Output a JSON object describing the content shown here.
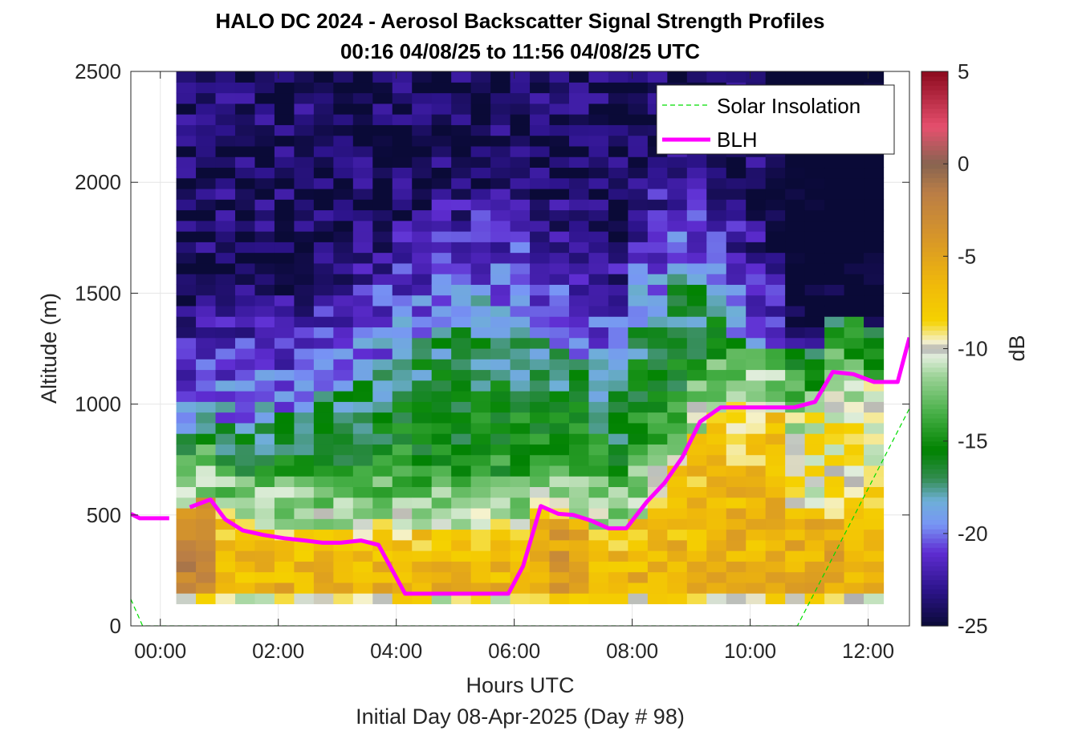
{
  "chart_data": {
    "type": "heatmap",
    "title": "HALO DC 2024 - Aerosol Backscatter Signal Strength Profiles",
    "subtitle": "00:16 04/08/25 to 11:56 04/08/25  UTC",
    "xlabel": "Hours UTC",
    "xlabel2": "Initial Day 08-Apr-2025 (Day # 98)",
    "ylabel": "Altitude (m)",
    "colorbar_label": "dB",
    "xlim": [
      -0.5,
      12.7
    ],
    "ylim": [
      0,
      2500
    ],
    "x_ticks": [
      0,
      2,
      4,
      6,
      8,
      10,
      12
    ],
    "x_tick_labels": [
      "00:00",
      "02:00",
      "04:00",
      "06:00",
      "08:00",
      "10:00",
      "12:00"
    ],
    "y_ticks": [
      0,
      500,
      1000,
      1500,
      2000,
      2500
    ],
    "y_tick_labels": [
      "0",
      "500",
      "1000",
      "1500",
      "2000",
      "2500"
    ],
    "clim": [
      -25,
      5
    ],
    "colorbar_ticks": [
      5,
      0,
      -5,
      -10,
      -15,
      -20,
      -25
    ],
    "colorbar_tick_labels": [
      "5",
      "0",
      "-5",
      "-10",
      "-15",
      "-20",
      "-25"
    ],
    "grid": true,
    "legend_position": "top-right",
    "heatmap": {
      "x_start": 0.27,
      "x_end": 11.93,
      "y_start": 100,
      "y_end": 2500,
      "row_step_m": 48,
      "column_step_hours": 0.333,
      "note_range_db": [
        -25,
        5
      ]
    },
    "series": [
      {
        "name": "Solar Insolation",
        "color": "#00dd00",
        "style": "dashed",
        "x": [
          -0.5,
          -0.3,
          10.8,
          12.7
        ],
        "y": [
          120,
          0,
          0,
          980
        ]
      },
      {
        "name": "BLH",
        "color": "#ff00ff",
        "style": "solid",
        "segments": [
          {
            "x": [
              -0.5,
              -0.35,
              0.15
            ],
            "y": [
              505,
              485,
              485
            ]
          },
          {
            "x": [
              0.5,
              0.85,
              1.1,
              1.4,
              1.75,
              2.1,
              2.45,
              2.75,
              3.05,
              3.4,
              3.7,
              4.15,
              4.6,
              5.1,
              5.5,
              5.9,
              6.15,
              6.45,
              6.75,
              7.0,
              7.3,
              7.6,
              7.9,
              8.25,
              8.55,
              8.85,
              9.15,
              9.5,
              9.85,
              10.25,
              10.75,
              11.1,
              11.4,
              11.75,
              12.1,
              12.5,
              12.7
            ],
            "y": [
              535,
              570,
              480,
              430,
              410,
              395,
              385,
              375,
              375,
              385,
              365,
              145,
              145,
              145,
              145,
              145,
              270,
              540,
              505,
              500,
              475,
              440,
              440,
              560,
              645,
              760,
              920,
              985,
              985,
              985,
              985,
              1010,
              1145,
              1135,
              1100,
              1100,
              1300
            ]
          }
        ]
      }
    ]
  }
}
